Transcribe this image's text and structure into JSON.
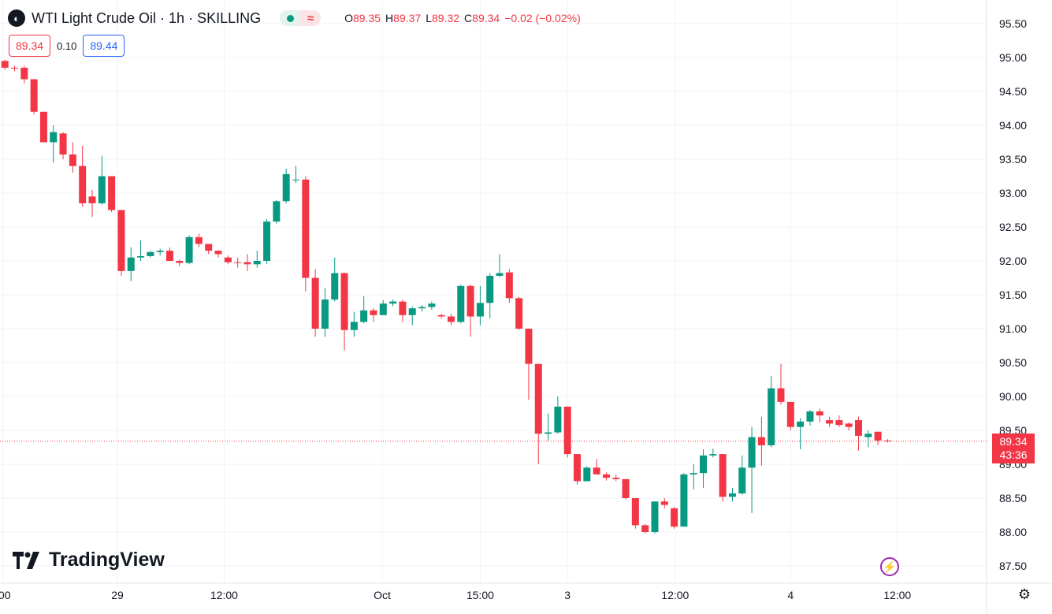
{
  "header": {
    "title": "WTI Light Crude Oil · 1h · SKILLING",
    "ohlc": [
      {
        "k": "O",
        "v": "89.35"
      },
      {
        "k": "H",
        "v": "89.37"
      },
      {
        "k": "L",
        "v": "89.32"
      },
      {
        "k": "C",
        "v": "89.34"
      }
    ],
    "change": "−0.02 (−0.02%)",
    "pill_right": "≈"
  },
  "quote": {
    "bid": "89.34",
    "spread": "0.10",
    "ask": "89.44"
  },
  "branding": {
    "name": "TradingView"
  },
  "last_price": {
    "price": "89.34",
    "countdown": "43:36"
  },
  "colors": {
    "up": "#089981",
    "down": "#f23645",
    "grid": "#f0f3fa",
    "axis_text": "#131722"
  },
  "chart_data": {
    "type": "candlestick",
    "y_ticks": [
      "95.50",
      "95.00",
      "94.50",
      "94.00",
      "93.50",
      "93.00",
      "92.50",
      "92.00",
      "91.50",
      "91.00",
      "90.50",
      "90.00",
      "89.50",
      "89.00",
      "88.50",
      "88.00",
      "87.50"
    ],
    "y_range": [
      87.5,
      95.5
    ],
    "x_ticks": [
      {
        "label": ":00",
        "bar": -0.2
      },
      {
        "label": "29",
        "bar": 11.6
      },
      {
        "label": "12:00",
        "bar": 22.6
      },
      {
        "label": "Oct",
        "bar": 38.9
      },
      {
        "label": "15:00",
        "bar": 49.0
      },
      {
        "label": "3",
        "bar": 58.0
      },
      {
        "label": "12:00",
        "bar": 69.1
      },
      {
        "label": "4",
        "bar": 81.0
      },
      {
        "label": "12:00",
        "bar": 92.0
      }
    ],
    "last_price": 89.34,
    "candles": [
      [
        94.95,
        94.85,
        94.97,
        94.82
      ],
      [
        94.85,
        94.84,
        94.88,
        94.8
      ],
      [
        94.85,
        94.68,
        94.88,
        94.62
      ],
      [
        94.68,
        94.2,
        94.68,
        94.16
      ],
      [
        94.2,
        93.75,
        94.2,
        93.75
      ],
      [
        93.75,
        93.9,
        94.0,
        93.45
      ],
      [
        93.88,
        93.57,
        93.9,
        93.5
      ],
      [
        93.57,
        93.4,
        93.75,
        93.3
      ],
      [
        93.4,
        92.85,
        93.7,
        92.8
      ],
      [
        92.95,
        92.85,
        93.05,
        92.65
      ],
      [
        92.85,
        93.25,
        93.55,
        92.83
      ],
      [
        93.25,
        92.75,
        93.25,
        92.72
      ],
      [
        92.75,
        91.85,
        92.75,
        91.78
      ],
      [
        91.85,
        92.05,
        92.2,
        91.7
      ],
      [
        92.05,
        92.07,
        92.3,
        92.0
      ],
      [
        92.07,
        92.13,
        92.15,
        92.05
      ],
      [
        92.13,
        92.15,
        92.18,
        92.08
      ],
      [
        92.15,
        92.0,
        92.2,
        92.0
      ],
      [
        92.0,
        91.97,
        92.02,
        91.92
      ],
      [
        91.97,
        92.35,
        92.38,
        91.95
      ],
      [
        92.35,
        92.25,
        92.4,
        92.2
      ],
      [
        92.25,
        92.15,
        92.25,
        92.1
      ],
      [
        92.15,
        92.1,
        92.15,
        92.05
      ],
      [
        92.05,
        91.98,
        92.08,
        91.95
      ],
      [
        91.98,
        91.97,
        92.05,
        91.9
      ],
      [
        91.98,
        91.95,
        92.1,
        91.85
      ],
      [
        91.95,
        92.0,
        92.15,
        91.9
      ],
      [
        92.0,
        92.58,
        92.62,
        91.95
      ],
      [
        92.58,
        92.88,
        92.9,
        92.55
      ],
      [
        92.88,
        93.28,
        93.36,
        92.85
      ],
      [
        93.2,
        93.2,
        93.4,
        93.15
      ],
      [
        93.2,
        91.75,
        93.25,
        91.55
      ],
      [
        91.75,
        91.0,
        91.88,
        90.88
      ],
      [
        91.0,
        91.43,
        91.6,
        90.88
      ],
      [
        91.43,
        91.82,
        92.05,
        91.4
      ],
      [
        91.82,
        90.98,
        91.83,
        90.68
      ],
      [
        90.98,
        91.1,
        91.25,
        90.88
      ],
      [
        91.1,
        91.27,
        91.48,
        91.08
      ],
      [
        91.27,
        91.2,
        91.3,
        91.1
      ],
      [
        91.2,
        91.37,
        91.42,
        91.2
      ],
      [
        91.37,
        91.4,
        91.43,
        91.33
      ],
      [
        91.4,
        91.2,
        91.43,
        91.1
      ],
      [
        91.2,
        91.3,
        91.33,
        91.05
      ],
      [
        91.3,
        91.32,
        91.35,
        91.25
      ],
      [
        91.32,
        91.37,
        91.4,
        91.28
      ],
      [
        91.2,
        91.18,
        91.22,
        91.15
      ],
      [
        91.18,
        91.1,
        91.22,
        91.05
      ],
      [
        91.1,
        91.63,
        91.65,
        91.08
      ],
      [
        91.63,
        91.18,
        91.65,
        90.88
      ],
      [
        91.18,
        91.38,
        91.63,
        91.05
      ],
      [
        91.38,
        91.78,
        91.82,
        91.15
      ],
      [
        91.78,
        91.82,
        92.1,
        91.76
      ],
      [
        91.83,
        91.45,
        91.88,
        91.38
      ],
      [
        91.45,
        91.0,
        91.47,
        90.98
      ],
      [
        91.0,
        90.48,
        91.0,
        89.95
      ],
      [
        90.48,
        89.45,
        90.48,
        89.0
      ],
      [
        89.45,
        89.47,
        89.75,
        89.35
      ],
      [
        89.47,
        89.85,
        90.0,
        89.45
      ],
      [
        89.85,
        89.15,
        89.85,
        89.1
      ],
      [
        89.15,
        88.75,
        89.15,
        88.7
      ],
      [
        88.75,
        88.95,
        88.97,
        88.75
      ],
      [
        88.95,
        88.85,
        89.08,
        88.85
      ],
      [
        88.85,
        88.8,
        88.88,
        88.76
      ],
      [
        88.8,
        88.78,
        88.84,
        88.75
      ],
      [
        88.78,
        88.5,
        88.78,
        88.48
      ],
      [
        88.5,
        88.1,
        88.5,
        88.05
      ],
      [
        88.1,
        88.0,
        88.12,
        87.98
      ],
      [
        88.0,
        88.45,
        88.45,
        87.98
      ],
      [
        88.45,
        88.4,
        88.5,
        88.35
      ],
      [
        88.35,
        88.08,
        88.37,
        88.05
      ],
      [
        88.08,
        88.85,
        88.87,
        88.08
      ],
      [
        88.85,
        88.87,
        89.0,
        88.63
      ],
      [
        88.87,
        89.13,
        89.22,
        88.65
      ],
      [
        89.13,
        89.15,
        89.23,
        89.1
      ],
      [
        89.15,
        88.52,
        89.15,
        88.45
      ],
      [
        88.52,
        88.57,
        88.65,
        88.45
      ],
      [
        88.57,
        88.95,
        89.13,
        88.55
      ],
      [
        88.95,
        89.4,
        89.55,
        88.28
      ],
      [
        89.4,
        89.28,
        89.7,
        88.98
      ],
      [
        89.28,
        90.12,
        90.3,
        89.25
      ],
      [
        90.12,
        89.92,
        90.48,
        89.88
      ],
      [
        89.92,
        89.55,
        89.92,
        89.5
      ],
      [
        89.55,
        89.63,
        89.68,
        89.22
      ],
      [
        89.63,
        89.78,
        89.8,
        89.57
      ],
      [
        89.78,
        89.72,
        89.82,
        89.62
      ],
      [
        89.65,
        89.6,
        89.7,
        89.55
      ],
      [
        89.65,
        89.58,
        89.72,
        89.55
      ],
      [
        89.6,
        89.55,
        89.62,
        89.5
      ],
      [
        89.65,
        89.42,
        89.7,
        89.2
      ],
      [
        89.4,
        89.45,
        89.5,
        89.25
      ],
      [
        89.48,
        89.35,
        89.48,
        89.28
      ],
      [
        89.35,
        89.34,
        89.37,
        89.32
      ]
    ]
  }
}
